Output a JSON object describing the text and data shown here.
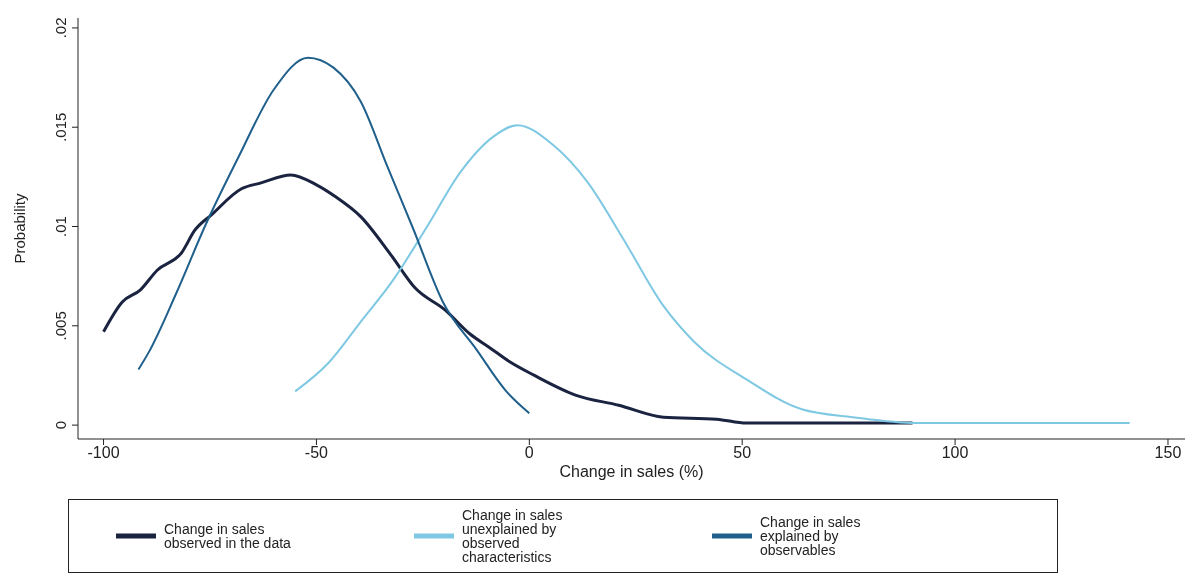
{
  "chart_data": {
    "type": "line",
    "xlabel": "Change in sales (%)",
    "ylabel": "Probability",
    "xlim": [
      -106,
      154
    ],
    "xticks": [
      -100,
      -50,
      0,
      50,
      100,
      150
    ],
    "ylim": [
      -0.0007,
      0.0205
    ],
    "yticks": [
      0,
      {
        "value": 0.005,
        "label": ".005"
      },
      {
        "value": 0.01,
        "label": ".01"
      },
      {
        "value": 0.015,
        "label": ".015"
      },
      {
        "value": 0.02,
        "label": ".02"
      }
    ],
    "grid": false,
    "legend": "bottom",
    "marker": "none",
    "line_style": "solid",
    "series": [
      {
        "name": "Change in sales observed in the data",
        "color": "#1a2340",
        "x": [
          -100,
          -95.6,
          -91.4,
          -87.4,
          -81.6,
          -78.6,
          -74.6,
          -67.6,
          -63,
          -56,
          -50,
          -45.5,
          -39.6,
          -32.6,
          -26.8,
          -19.8,
          -14,
          -9.3,
          -4.7,
          1.2,
          11,
          21,
          31.5,
          44,
          51,
          70,
          90
        ],
        "values": [
          0.0047,
          0.0062,
          0.0068,
          0.0078,
          0.0087,
          0.0098,
          0.0106,
          0.0119,
          0.0122,
          0.0126,
          0.0121,
          0.0115,
          0.0105,
          0.0086,
          0.0069,
          0.0058,
          0.0046,
          0.0039,
          0.0032,
          0.0025,
          0.0015,
          0.001,
          0.0004,
          0.0003,
          0.0001,
          0.0001,
          0.0001
        ]
      },
      {
        "name": "Change in sales unexplained by observed characteristics",
        "color": "#7ec8e3",
        "x": [
          -55,
          -47.3,
          -39.6,
          -32,
          -24,
          -16.3,
          -8.6,
          -2.8,
          5.6,
          13.8,
          22,
          31.5,
          38.7,
          51,
          64,
          76,
          91,
          141
        ],
        "values": [
          0.0017,
          0.0031,
          0.0052,
          0.0073,
          0.01,
          0.0127,
          0.0145,
          0.0151,
          0.0141,
          0.0122,
          0.0094,
          0.006,
          0.0042,
          0.0023,
          0.0008,
          0.0004,
          0.0001,
          0.0001
        ]
      },
      {
        "name": "Change in sales explained by observables",
        "color": "#1f5f8b",
        "x": [
          -91.8,
          -89.3,
          -83,
          -76,
          -68.3,
          -60,
          -52,
          -46,
          -39.6,
          -33.3,
          -27.3,
          -20.3,
          -12.4,
          -5.4,
          0
        ],
        "values": [
          0.0028,
          0.0037,
          0.0066,
          0.0101,
          0.0135,
          0.0169,
          0.0185,
          0.018,
          0.0163,
          0.013,
          0.0099,
          0.0062,
          0.0038,
          0.0017,
          0.0006
        ]
      }
    ]
  }
}
